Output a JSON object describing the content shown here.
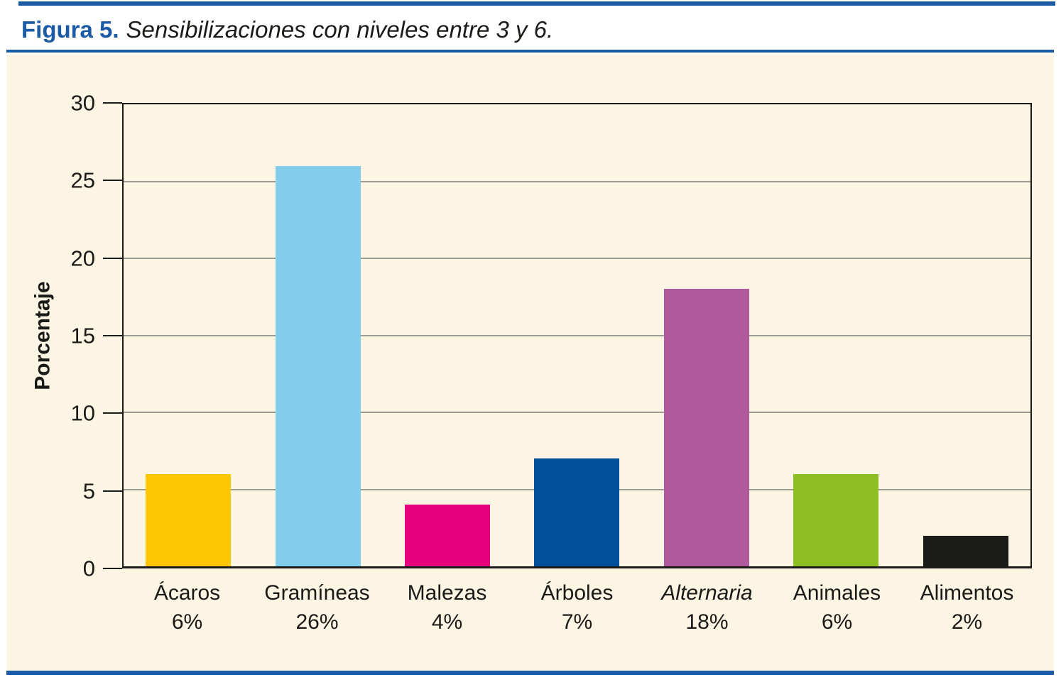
{
  "figure": {
    "label": "Figura 5.",
    "title": "Sensibilizaciones con niveles entre 3 y 6."
  },
  "colors": {
    "accent_blue": "#1b5ba6",
    "panel_bg": "#fcf5e4",
    "ink": "#1a1a17",
    "axis": "#1a1a17",
    "gridline": "#9c9c94"
  },
  "chart_data": {
    "type": "bar",
    "title": "Sensibilizaciones con niveles entre 3 y 6.",
    "xlabel": "",
    "ylabel": "Porcentaje",
    "ylim": [
      0,
      30
    ],
    "yticks": [
      0,
      5,
      10,
      15,
      20,
      25,
      30
    ],
    "grid": true,
    "legend": false,
    "categories": [
      "Ácaros",
      "Gramíneas",
      "Malezas",
      "Árboles",
      "Alternaria",
      "Animales",
      "Alimentos"
    ],
    "values": [
      6,
      26,
      4,
      7,
      18,
      6,
      2
    ],
    "value_labels": [
      "6%",
      "26%",
      "4%",
      "7%",
      "18%",
      "6%",
      "2%"
    ],
    "bar_colors": [
      "#ffc703",
      "#82cdec",
      "#e6007e",
      "#02509b",
      "#b05a9e",
      "#8dbe23",
      "#1a1a17"
    ],
    "italic_categories": [
      "Alternaria"
    ]
  }
}
